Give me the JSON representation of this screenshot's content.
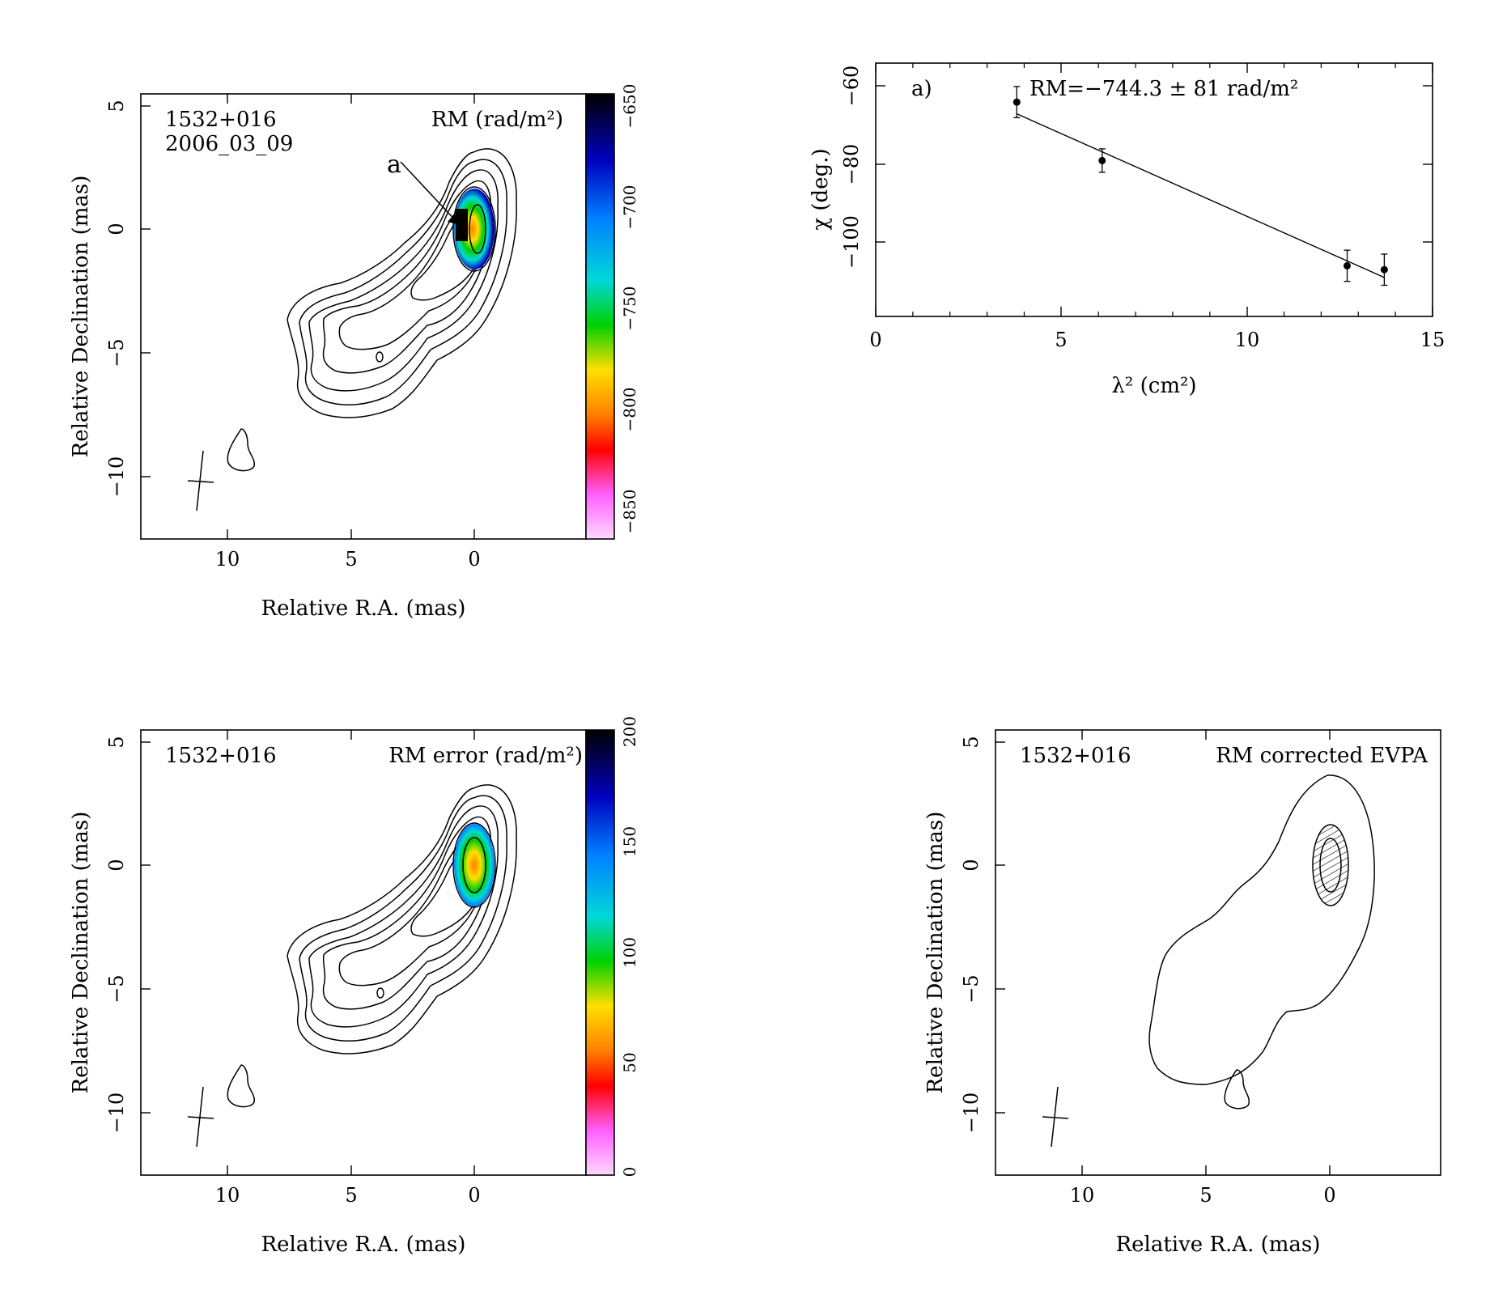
{
  "panels": {
    "rm_map": {
      "source": "1532+016",
      "date": "2006_03_09",
      "map_label": "RM (rad/m²)",
      "region_marker": "a",
      "xlabel": "Relative R.A. (mas)",
      "ylabel": "Relative Declination (mas)",
      "x_ticks": [
        "10",
        "5",
        "0"
      ],
      "y_ticks": [
        "5",
        "0",
        "−5",
        "−10"
      ],
      "colorbar_ticks": [
        "−650",
        "−700",
        "−750",
        "−800",
        "−850"
      ]
    },
    "rm_fit": {
      "region_label": "a)",
      "fit_label": "RM=−744.3 ± 81 rad/m²",
      "xlabel": "λ² (cm²)",
      "ylabel": "χ (deg.)",
      "x_ticks": [
        "0",
        "5",
        "10",
        "15"
      ],
      "y_ticks": [
        "−60",
        "−80",
        "−100"
      ]
    },
    "rm_error": {
      "source": "1532+016",
      "map_label": "RM error (rad/m²)",
      "xlabel": "Relative R.A. (mas)",
      "ylabel": "Relative Declination (mas)",
      "x_ticks": [
        "10",
        "5",
        "0"
      ],
      "y_ticks": [
        "5",
        "0",
        "−5",
        "−10"
      ],
      "colorbar_ticks": [
        "200",
        "150",
        "100",
        "50",
        "0"
      ]
    },
    "evpa": {
      "source": "1532+016",
      "map_label": "RM corrected EVPA",
      "xlabel": "Relative R.A. (mas)",
      "ylabel": "Relative Declination (mas)",
      "x_ticks": [
        "10",
        "5",
        "0"
      ],
      "y_ticks": [
        "5",
        "0",
        "−5",
        "−10"
      ]
    }
  },
  "chart_data": [
    {
      "type": "heatmap",
      "panel": "rm_map",
      "xlim": [
        13.5,
        -4.5
      ],
      "ylim": [
        -12.5,
        5.5
      ],
      "colorbar_range": [
        -860,
        -640
      ],
      "colorbar_colors": [
        "#ffd8ff",
        "#ff60ff",
        "#ff0000",
        "#ff8000",
        "#ffe000",
        "#00d000",
        "#00d8d8",
        "#0080ff",
        "#0000c0",
        "#000000"
      ],
      "total_intensity_contours": 10,
      "beam_center": [
        11.2,
        -10.2
      ],
      "region_a": [
        0.5,
        0
      ]
    },
    {
      "type": "scatter",
      "panel": "rm_fit",
      "xlim": [
        0,
        15
      ],
      "ylim": [
        -120,
        -55
      ],
      "x": [
        3.8,
        6.1,
        12.7,
        13.7
      ],
      "y": [
        -65,
        -80,
        -107,
        -108
      ],
      "yerr": [
        4,
        3,
        4,
        4
      ],
      "fit_line": {
        "x": [
          3.8,
          13.7
        ],
        "y": [
          -68,
          -110
        ],
        "slope_rad_per_m2": -744.3,
        "error": 81
      }
    },
    {
      "type": "heatmap",
      "panel": "rm_error",
      "xlim": [
        13.5,
        -4.5
      ],
      "ylim": [
        -12.5,
        5.5
      ],
      "colorbar_range": [
        0,
        200
      ],
      "colorbar_colors": [
        "#ffd8ff",
        "#ff60ff",
        "#ff0000",
        "#ff8000",
        "#ffe000",
        "#00d000",
        "#00d8d8",
        "#0080ff",
        "#0000c0",
        "#000000"
      ]
    },
    {
      "type": "heatmap",
      "panel": "evpa",
      "xlim": [
        13.5,
        -4.5
      ],
      "ylim": [
        -12.5,
        5.5
      ],
      "evpa_region_center": [
        0,
        0
      ]
    }
  ]
}
